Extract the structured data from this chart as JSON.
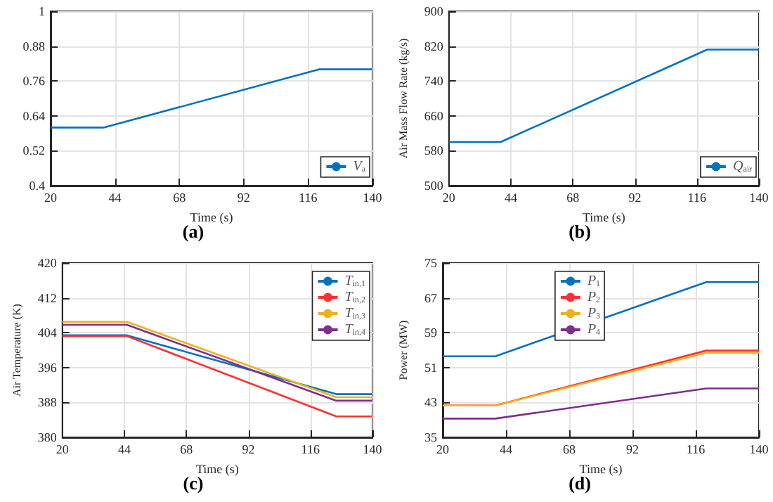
{
  "chart_data": [
    {
      "type": "line",
      "title": "(a)",
      "xlabel": "Time (s)",
      "x": [
        20,
        40,
        120,
        140
      ],
      "xlim": [
        20,
        140
      ],
      "xticks": [
        20,
        44,
        68,
        92,
        116,
        140
      ],
      "ylim": [
        0.4,
        1
      ],
      "yticks": [
        0.4,
        0.52,
        0.64,
        0.76,
        0.88,
        1
      ],
      "grid": true,
      "legend": "bottom right",
      "marker": "none",
      "series": [
        {
          "name": "V$_{a}$",
          "color": "#0072bd",
          "values": [
            0.6,
            0.6,
            0.8,
            0.8
          ]
        }
      ]
    },
    {
      "type": "line",
      "title": "(b)",
      "xlabel": "Time (s)",
      "ylabel": "Air Mass Flow Rate (kg/s)",
      "x": [
        20,
        40,
        120,
        140
      ],
      "xlim": [
        20,
        140
      ],
      "xticks": [
        20,
        44,
        68,
        92,
        116,
        140
      ],
      "ylim": [
        500,
        900
      ],
      "yticks": [
        500,
        580,
        660,
        740,
        820,
        900
      ],
      "grid": true,
      "legend": "bottom right",
      "marker": "none",
      "series": [
        {
          "name": "Q$_{air}$",
          "color": "#0072bd",
          "values": [
            600,
            600,
            812,
            812
          ]
        }
      ]
    },
    {
      "type": "line",
      "title": "(c)",
      "xlabel": "Time (s)",
      "ylabel": "Air Temperature (K)",
      "x": [
        20,
        45,
        126,
        140
      ],
      "xlim": [
        20,
        140
      ],
      "xticks": [
        20,
        44,
        68,
        92,
        116,
        140
      ],
      "ylim": [
        380,
        420
      ],
      "yticks": [
        380,
        388,
        396,
        404,
        412,
        420
      ],
      "grid": true,
      "legend": "top right",
      "marker": "none",
      "series": [
        {
          "name": "T$_{in,1}$",
          "color": "#0072bd",
          "values": [
            403.4,
            403.4,
            389.9,
            389.9
          ]
        },
        {
          "name": "T$_{in,2}$",
          "color": "#ff3030",
          "values": [
            403.2,
            403.2,
            384.8,
            384.8
          ]
        },
        {
          "name": "T$_{in,3}$",
          "color": "#edb120",
          "values": [
            406.5,
            406.5,
            389.2,
            389.2
          ]
        },
        {
          "name": "T$_{in,4}$",
          "color": "#7e2f8e",
          "values": [
            405.8,
            405.8,
            388.4,
            388.4
          ]
        }
      ]
    },
    {
      "type": "line",
      "title": "(d)",
      "xlabel": "Time (s)",
      "ylabel": "Power (MW)",
      "x": [
        20,
        40,
        120,
        140
      ],
      "xlim": [
        20,
        140
      ],
      "xticks": [
        20,
        44,
        68,
        92,
        116,
        140
      ],
      "ylim": [
        35,
        75
      ],
      "yticks": [
        35,
        43,
        51,
        59,
        67,
        75
      ],
      "grid": true,
      "legend": "top",
      "marker": "none",
      "series": [
        {
          "name": "P$_{1}$",
          "color": "#0072bd",
          "values": [
            53.6,
            53.6,
            70.6,
            70.6
          ]
        },
        {
          "name": "P$_{2}$",
          "color": "#ff3030",
          "values": [
            42.3,
            42.3,
            54.9,
            54.9
          ]
        },
        {
          "name": "P$_{3}$",
          "color": "#edb120",
          "values": [
            42.3,
            42.3,
            54.4,
            54.4
          ]
        },
        {
          "name": "P$_{4}$",
          "color": "#7e2f8e",
          "values": [
            39.3,
            39.3,
            46.2,
            46.2
          ]
        }
      ]
    }
  ]
}
